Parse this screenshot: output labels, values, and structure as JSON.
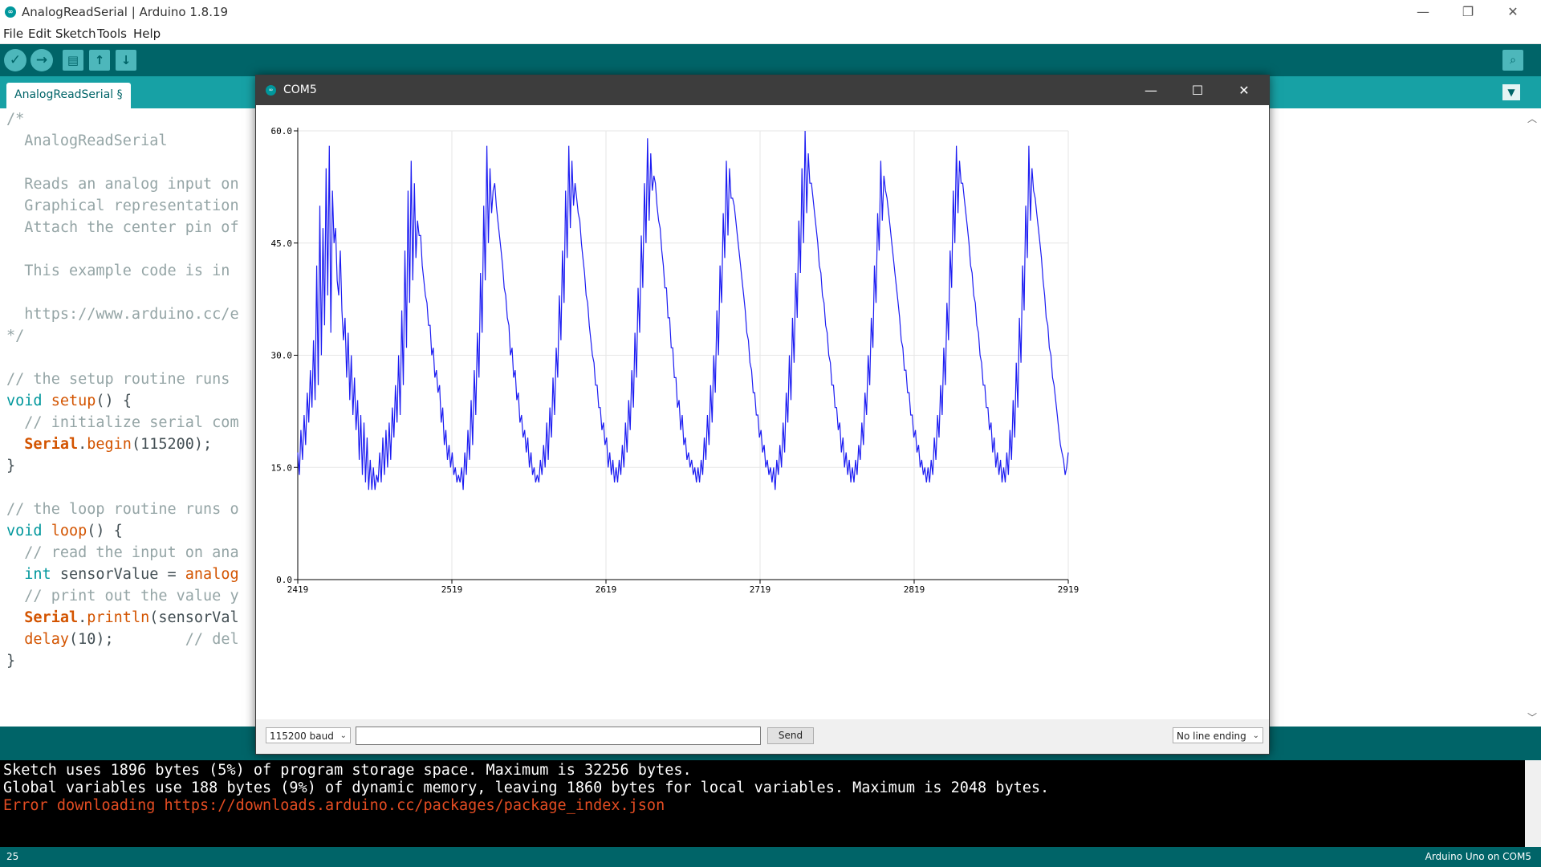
{
  "window": {
    "title": "AnalogReadSerial | Arduino 1.8.19",
    "minimize": "—",
    "maximize": "❐",
    "close": "✕"
  },
  "menu": [
    "File",
    "Edit",
    "Sketch",
    "Tools",
    "Help"
  ],
  "toolbar": {
    "verify_icon": "✓",
    "upload_icon": "→",
    "new_icon": "▤",
    "open_icon": "↑",
    "save_icon": "↓",
    "serial_icon": "⌕"
  },
  "tab": {
    "label": "AnalogReadSerial §",
    "menu_icon": "▼"
  },
  "editor": {
    "lines": [
      {
        "t": "/*",
        "c": "c-comment"
      },
      {
        "t": "  AnalogReadSerial",
        "c": "c-comment"
      },
      {
        "t": "",
        "c": "c-comment"
      },
      {
        "t": "  Reads an analog input on",
        "c": "c-comment"
      },
      {
        "t": "  Graphical representation",
        "c": "c-comment"
      },
      {
        "t": "  Attach the center pin of",
        "c": "c-comment"
      },
      {
        "t": "",
        "c": "c-comment"
      },
      {
        "t": "  This example code is in",
        "c": "c-comment"
      },
      {
        "t": "",
        "c": "c-comment"
      },
      {
        "t": "  https://www.arduino.cc/e",
        "c": "c-comment"
      },
      {
        "t": "*/",
        "c": "c-comment"
      },
      {
        "t": "",
        "c": "c-plain"
      },
      {
        "t": "// the setup routine runs",
        "c": "c-plain"
      },
      {
        "t": "void setup() {",
        "c": "c-plain"
      },
      {
        "t": "  // initialize serial com",
        "c": "c-plain"
      },
      {
        "t": "  Serial.begin(115200);",
        "c": "c-plain"
      },
      {
        "t": "}",
        "c": "c-plain"
      },
      {
        "t": "",
        "c": "c-plain"
      },
      {
        "t": "// the loop routine runs o",
        "c": "c-plain"
      },
      {
        "t": "void loop() {",
        "c": "c-plain"
      },
      {
        "t": "  // read the input on ana",
        "c": "c-plain"
      },
      {
        "t": "  int sensorValue = analog",
        "c": "c-plain"
      },
      {
        "t": "  // print out the value y",
        "c": "c-plain"
      },
      {
        "t": "  Serial.println(sensorVal",
        "c": "c-plain"
      },
      {
        "t": "  delay(10);        // del",
        "c": "c-plain"
      },
      {
        "t": "}",
        "c": "c-plain"
      }
    ]
  },
  "console": {
    "lines": [
      {
        "t": "Sketch uses 1896 bytes (5%) of program storage space. Maximum is 32256 bytes.",
        "color": "#ffffff"
      },
      {
        "t": "Global variables use 188 bytes (9%) of dynamic memory, leaving 1860 bytes for local variables. Maximum is 2048 bytes.",
        "color": "#ffffff"
      },
      {
        "t": "Error downloading https://downloads.arduino.cc/packages/package_index.json",
        "color": "#e34c22"
      }
    ]
  },
  "status": {
    "line": "25",
    "board": "Arduino Uno on COM5"
  },
  "plotter": {
    "title": "COM5",
    "minimize": "—",
    "maximize": "☐",
    "close": "✕",
    "baud": "115200 baud",
    "send_input": "",
    "send_label": "Send",
    "line_ending": "No line ending",
    "dropdown_icon": "⌄"
  },
  "chart_data": {
    "type": "line",
    "title": "",
    "xlabel": "",
    "ylabel": "",
    "xlim": [
      2419,
      2919
    ],
    "ylim": [
      0.0,
      60.0
    ],
    "x_ticks": [
      "2419",
      "2519",
      "2619",
      "2719",
      "2819",
      "2919"
    ],
    "y_ticks": [
      "0.0",
      "15.0",
      "30.0",
      "45.0",
      "60.0"
    ],
    "grid": true,
    "series_color": "#1c1cf2",
    "series": [
      {
        "name": "",
        "values": [
          17,
          14,
          20,
          16,
          22,
          18,
          25,
          21,
          28,
          23,
          32,
          24,
          42,
          26,
          50,
          30,
          47,
          34,
          55,
          38,
          58,
          33,
          52,
          45,
          47,
          40,
          38,
          44,
          36,
          32,
          35,
          27,
          33,
          24,
          30,
          22,
          27,
          20,
          24,
          16,
          22,
          14,
          21,
          13,
          19,
          12,
          16,
          12,
          15,
          12,
          14,
          13,
          17,
          13,
          19,
          14,
          20,
          15,
          21,
          16,
          23,
          19,
          26,
          21,
          30,
          22,
          36,
          26,
          44,
          31,
          52,
          37,
          56,
          40,
          53,
          43,
          48,
          46,
          46,
          42,
          40,
          38,
          37,
          34,
          34,
          30,
          31,
          27,
          28,
          25,
          26,
          21,
          23,
          18,
          20,
          16,
          18,
          15,
          17,
          14,
          15,
          13,
          14,
          13,
          15,
          12,
          17,
          14,
          20,
          16,
          24,
          18,
          28,
          22,
          33,
          27,
          41,
          33,
          50,
          40,
          58,
          45,
          55,
          49,
          52,
          53,
          50,
          48,
          46,
          44,
          42,
          39,
          38,
          35,
          34,
          30,
          31,
          27,
          28,
          24,
          25,
          21,
          22,
          19,
          20,
          17,
          19,
          15,
          17,
          14,
          15,
          13,
          14,
          13,
          16,
          14,
          18,
          15,
          21,
          16,
          23,
          19,
          27,
          22,
          31,
          27,
          38,
          32,
          44,
          37,
          52,
          43,
          58,
          47,
          56,
          50,
          53,
          51,
          49,
          48,
          45,
          43,
          41,
          38,
          37,
          34,
          32,
          30,
          29,
          26,
          26,
          23,
          23,
          20,
          21,
          18,
          19,
          15,
          17,
          14,
          16,
          13,
          15,
          13,
          16,
          14,
          18,
          15,
          21,
          17,
          24,
          20,
          28,
          23,
          33,
          27,
          39,
          33,
          46,
          39,
          53,
          45,
          59,
          48,
          57,
          52,
          54,
          53,
          50,
          48,
          47,
          44,
          42,
          39,
          39,
          35,
          35,
          31,
          31,
          27,
          27,
          23,
          24,
          20,
          22,
          18,
          19,
          16,
          17,
          15,
          16,
          14,
          15,
          13,
          15,
          13,
          16,
          14,
          19,
          16,
          22,
          18,
          26,
          21,
          30,
          25,
          36,
          30,
          42,
          37,
          49,
          43,
          56,
          46,
          55,
          51,
          51,
          50,
          48,
          46,
          44,
          42,
          40,
          38,
          36,
          33,
          32,
          29,
          28,
          25,
          25,
          22,
          22,
          19,
          20,
          17,
          18,
          15,
          16,
          14,
          15,
          13,
          15,
          12,
          16,
          14,
          18,
          15,
          21,
          17,
          25,
          21,
          30,
          24,
          35,
          29,
          41,
          35,
          48,
          41,
          55,
          45,
          60,
          49,
          57,
          53,
          53,
          51,
          49,
          47,
          45,
          42,
          41,
          38,
          37,
          34,
          33,
          30,
          29,
          26,
          26,
          23,
          23,
          20,
          21,
          17,
          19,
          15,
          17,
          14,
          16,
          13,
          15,
          13,
          16,
          14,
          18,
          16,
          21,
          18,
          25,
          22,
          30,
          26,
          35,
          31,
          42,
          37,
          49,
          44,
          56,
          48,
          54,
          52,
          51,
          49,
          47,
          45,
          43,
          41,
          39,
          37,
          35,
          32,
          31,
          28,
          28,
          25,
          25,
          22,
          22,
          19,
          20,
          17,
          18,
          15,
          16,
          14,
          15,
          13,
          15,
          13,
          16,
          14,
          19,
          16,
          22,
          19,
          26,
          22,
          31,
          26,
          37,
          32,
          44,
          39,
          52,
          45,
          58,
          49,
          56,
          53,
          53,
          51,
          49,
          47,
          45,
          42,
          41,
          38,
          37,
          34,
          33,
          30,
          29,
          26,
          26,
          23,
          23,
          20,
          21,
          17,
          19,
          15,
          17,
          14,
          16,
          13,
          15,
          13,
          17,
          14,
          20,
          16,
          24,
          19,
          29,
          23,
          35,
          29,
          42,
          36,
          50,
          43,
          58,
          48,
          55,
          52,
          51,
          49,
          47,
          45,
          43,
          40,
          38,
          35,
          34,
          31,
          30,
          27,
          26,
          24,
          22,
          20,
          18,
          17,
          16,
          14,
          15,
          17
        ]
      }
    ]
  }
}
